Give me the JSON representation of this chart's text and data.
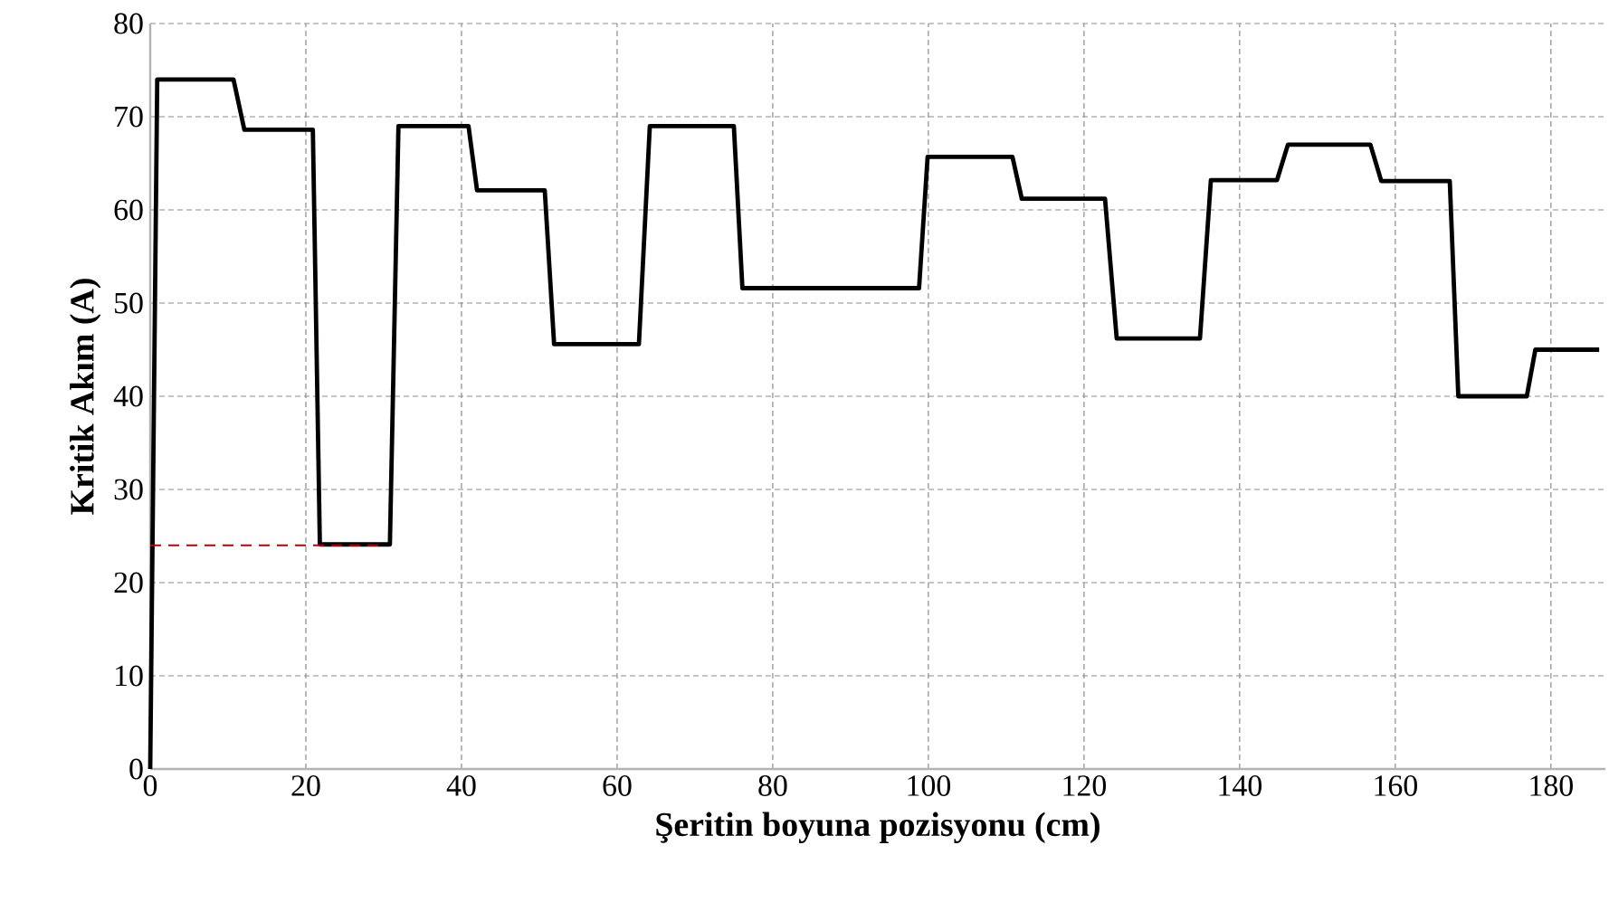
{
  "chart_data": {
    "type": "line",
    "xlabel": "Şeritin boyuna pozisyonu (cm)",
    "ylabel": "Kritik Akım (A)",
    "xlim": [
      0,
      187
    ],
    "ylim": [
      0,
      80
    ],
    "xticks": [
      0,
      20,
      40,
      60,
      80,
      100,
      120,
      140,
      160,
      180
    ],
    "yticks": [
      0,
      10,
      20,
      30,
      40,
      50,
      60,
      70,
      80
    ],
    "grid": true,
    "marker": "none",
    "line_style": "solid",
    "series": [
      {
        "color": "#000000",
        "x": [
          0,
          0.9,
          10.7,
          12.1,
          20.9,
          21.8,
          30.8,
          31.9,
          40.9,
          42.0,
          50.7,
          51.9,
          62.8,
          64.2,
          75.0,
          76.1,
          98.8,
          99.9,
          110.8,
          112.0,
          122.7,
          124.2,
          134.9,
          136.3,
          144.8,
          146.2,
          156.8,
          158.2,
          167.0,
          168.1,
          176.9,
          178.0,
          186.2
        ],
        "values": [
          0,
          74.0,
          74.0,
          68.6,
          68.6,
          24.1,
          24.1,
          69.0,
          69.0,
          62.1,
          62.1,
          45.6,
          45.6,
          69.0,
          69.0,
          51.6,
          51.6,
          65.7,
          65.7,
          61.2,
          61.2,
          46.2,
          46.2,
          63.2,
          63.2,
          67.0,
          67.0,
          63.1,
          63.1,
          40.0,
          40.0,
          45.0,
          45.0
        ]
      },
      {
        "color": "#c00000",
        "line_style": "dashed",
        "x": [
          0,
          30
        ],
        "values": [
          24,
          24
        ]
      }
    ]
  }
}
